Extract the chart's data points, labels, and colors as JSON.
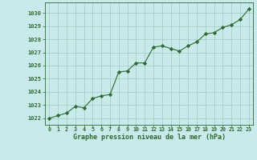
{
  "x": [
    0,
    1,
    2,
    3,
    4,
    5,
    6,
    7,
    8,
    9,
    10,
    11,
    12,
    13,
    14,
    15,
    16,
    17,
    18,
    19,
    20,
    21,
    22,
    23
  ],
  "y": [
    1022.0,
    1022.2,
    1022.4,
    1022.9,
    1022.8,
    1023.5,
    1023.7,
    1023.8,
    1025.5,
    1025.6,
    1026.2,
    1026.2,
    1027.4,
    1027.5,
    1027.3,
    1027.1,
    1027.5,
    1027.8,
    1028.4,
    1028.5,
    1028.9,
    1029.1,
    1029.5,
    1030.3
  ],
  "line_color": "#2d6a2d",
  "marker_color": "#2d6a2d",
  "bg_color": "#c8eaea",
  "plot_bg_color": "#c8eaea",
  "grid_color": "#a0c8c0",
  "tick_label_color": "#2d6a2d",
  "xlabel": "Graphe pression niveau de la mer (hPa)",
  "xlabel_color": "#2d6a2d",
  "ylim_min": 1021.5,
  "ylim_max": 1030.8,
  "xlim_min": -0.5,
  "xlim_max": 23.5,
  "yticks": [
    1022,
    1023,
    1024,
    1025,
    1026,
    1027,
    1028,
    1029,
    1030
  ],
  "xtick_labels": [
    "0",
    "1",
    "2",
    "3",
    "4",
    "5",
    "6",
    "7",
    "8",
    "9",
    "10",
    "11",
    "12",
    "13",
    "14",
    "15",
    "16",
    "17",
    "18",
    "19",
    "20",
    "21",
    "22",
    "23"
  ]
}
